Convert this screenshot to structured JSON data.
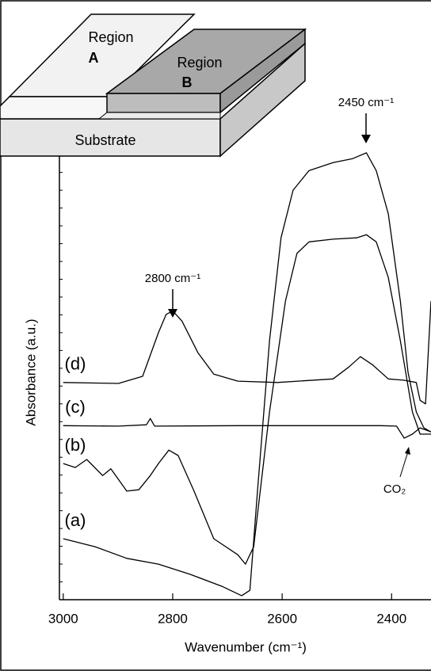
{
  "chart_data": {
    "type": "line",
    "xlabel": "Wavenumber (cm⁻¹)",
    "ylabel": "Absorbance (a.u.)",
    "xlim": [
      3007,
      2328
    ],
    "ylim": [
      0,
      110
    ],
    "xticks": [
      3000,
      2800,
      2600,
      2400
    ],
    "yticks": [
      0,
      4,
      8,
      12,
      16,
      20,
      24,
      28,
      32,
      36,
      40,
      44,
      48,
      52,
      56,
      60,
      64,
      68,
      72,
      76,
      80,
      84,
      88,
      92,
      96
    ],
    "series": [
      {
        "name": "(d)",
        "color": "#000000",
        "x": [
          3000,
          2899,
          2855,
          2826,
          2812,
          2800,
          2783,
          2754,
          2725,
          2681,
          2609,
          2507,
          2478,
          2457,
          2435,
          2406,
          2377,
          2355,
          2348,
          2338,
          2328
        ],
        "values": [
          48.8,
          48.6,
          50.2,
          60.0,
          64.1,
          64.9,
          62.6,
          55.5,
          50.7,
          49.1,
          48.8,
          49.6,
          52.3,
          54.6,
          52.8,
          49.6,
          49.3,
          48.8,
          44.8,
          44.0,
          67.1
        ]
      },
      {
        "name": "(c)",
        "color": "#000000",
        "x": [
          3000,
          2899,
          2848,
          2841,
          2833,
          2681,
          2536,
          2420,
          2391,
          2377,
          2362,
          2348,
          2328
        ],
        "values": [
          39.1,
          39.0,
          39.3,
          40.7,
          39.0,
          39.1,
          39.1,
          39.1,
          39.0,
          36.3,
          37.2,
          38.6,
          37.7
        ]
      },
      {
        "name": "(b)",
        "color": "#000000",
        "x": [
          3000,
          2978,
          2957,
          2928,
          2913,
          2884,
          2862,
          2841,
          2826,
          2807,
          2790,
          2761,
          2725,
          2681,
          2667,
          2652,
          2623,
          2594,
          2573,
          2551,
          2507,
          2464,
          2446,
          2428,
          2406,
          2384,
          2362,
          2348,
          2328
        ],
        "values": [
          30.6,
          29.7,
          31.5,
          27.9,
          29.4,
          24.4,
          24.7,
          27.9,
          30.6,
          33.6,
          32.4,
          24.4,
          13.7,
          10.1,
          8.0,
          11.9,
          42.2,
          67.1,
          77.8,
          80.4,
          81.0,
          81.3,
          82.0,
          80.4,
          72.4,
          58.2,
          42.2,
          37.2,
          37.2
        ]
      },
      {
        "name": "(a)",
        "color": "#000000",
        "x": [
          3000,
          2942,
          2884,
          2826,
          2768,
          2710,
          2674,
          2659,
          2645,
          2623,
          2602,
          2580,
          2551,
          2507,
          2471,
          2446,
          2428,
          2406,
          2384,
          2370,
          2355,
          2341,
          2328
        ],
        "values": [
          13.7,
          11.9,
          9.3,
          8.0,
          5.7,
          3.0,
          0.9,
          2.1,
          24.4,
          58.2,
          81.3,
          92.0,
          96.4,
          98.2,
          99.1,
          100.4,
          96.4,
          86.7,
          67.1,
          51.1,
          42.2,
          38.6,
          37.7
        ]
      }
    ],
    "annotations": [
      "2450 cm⁻¹",
      "2800 cm⁻¹",
      "CO₂"
    ],
    "inset": {
      "region_a": [
        "Region",
        "A"
      ],
      "region_b": [
        "Region",
        "B"
      ],
      "substrate": "Substrate"
    }
  }
}
